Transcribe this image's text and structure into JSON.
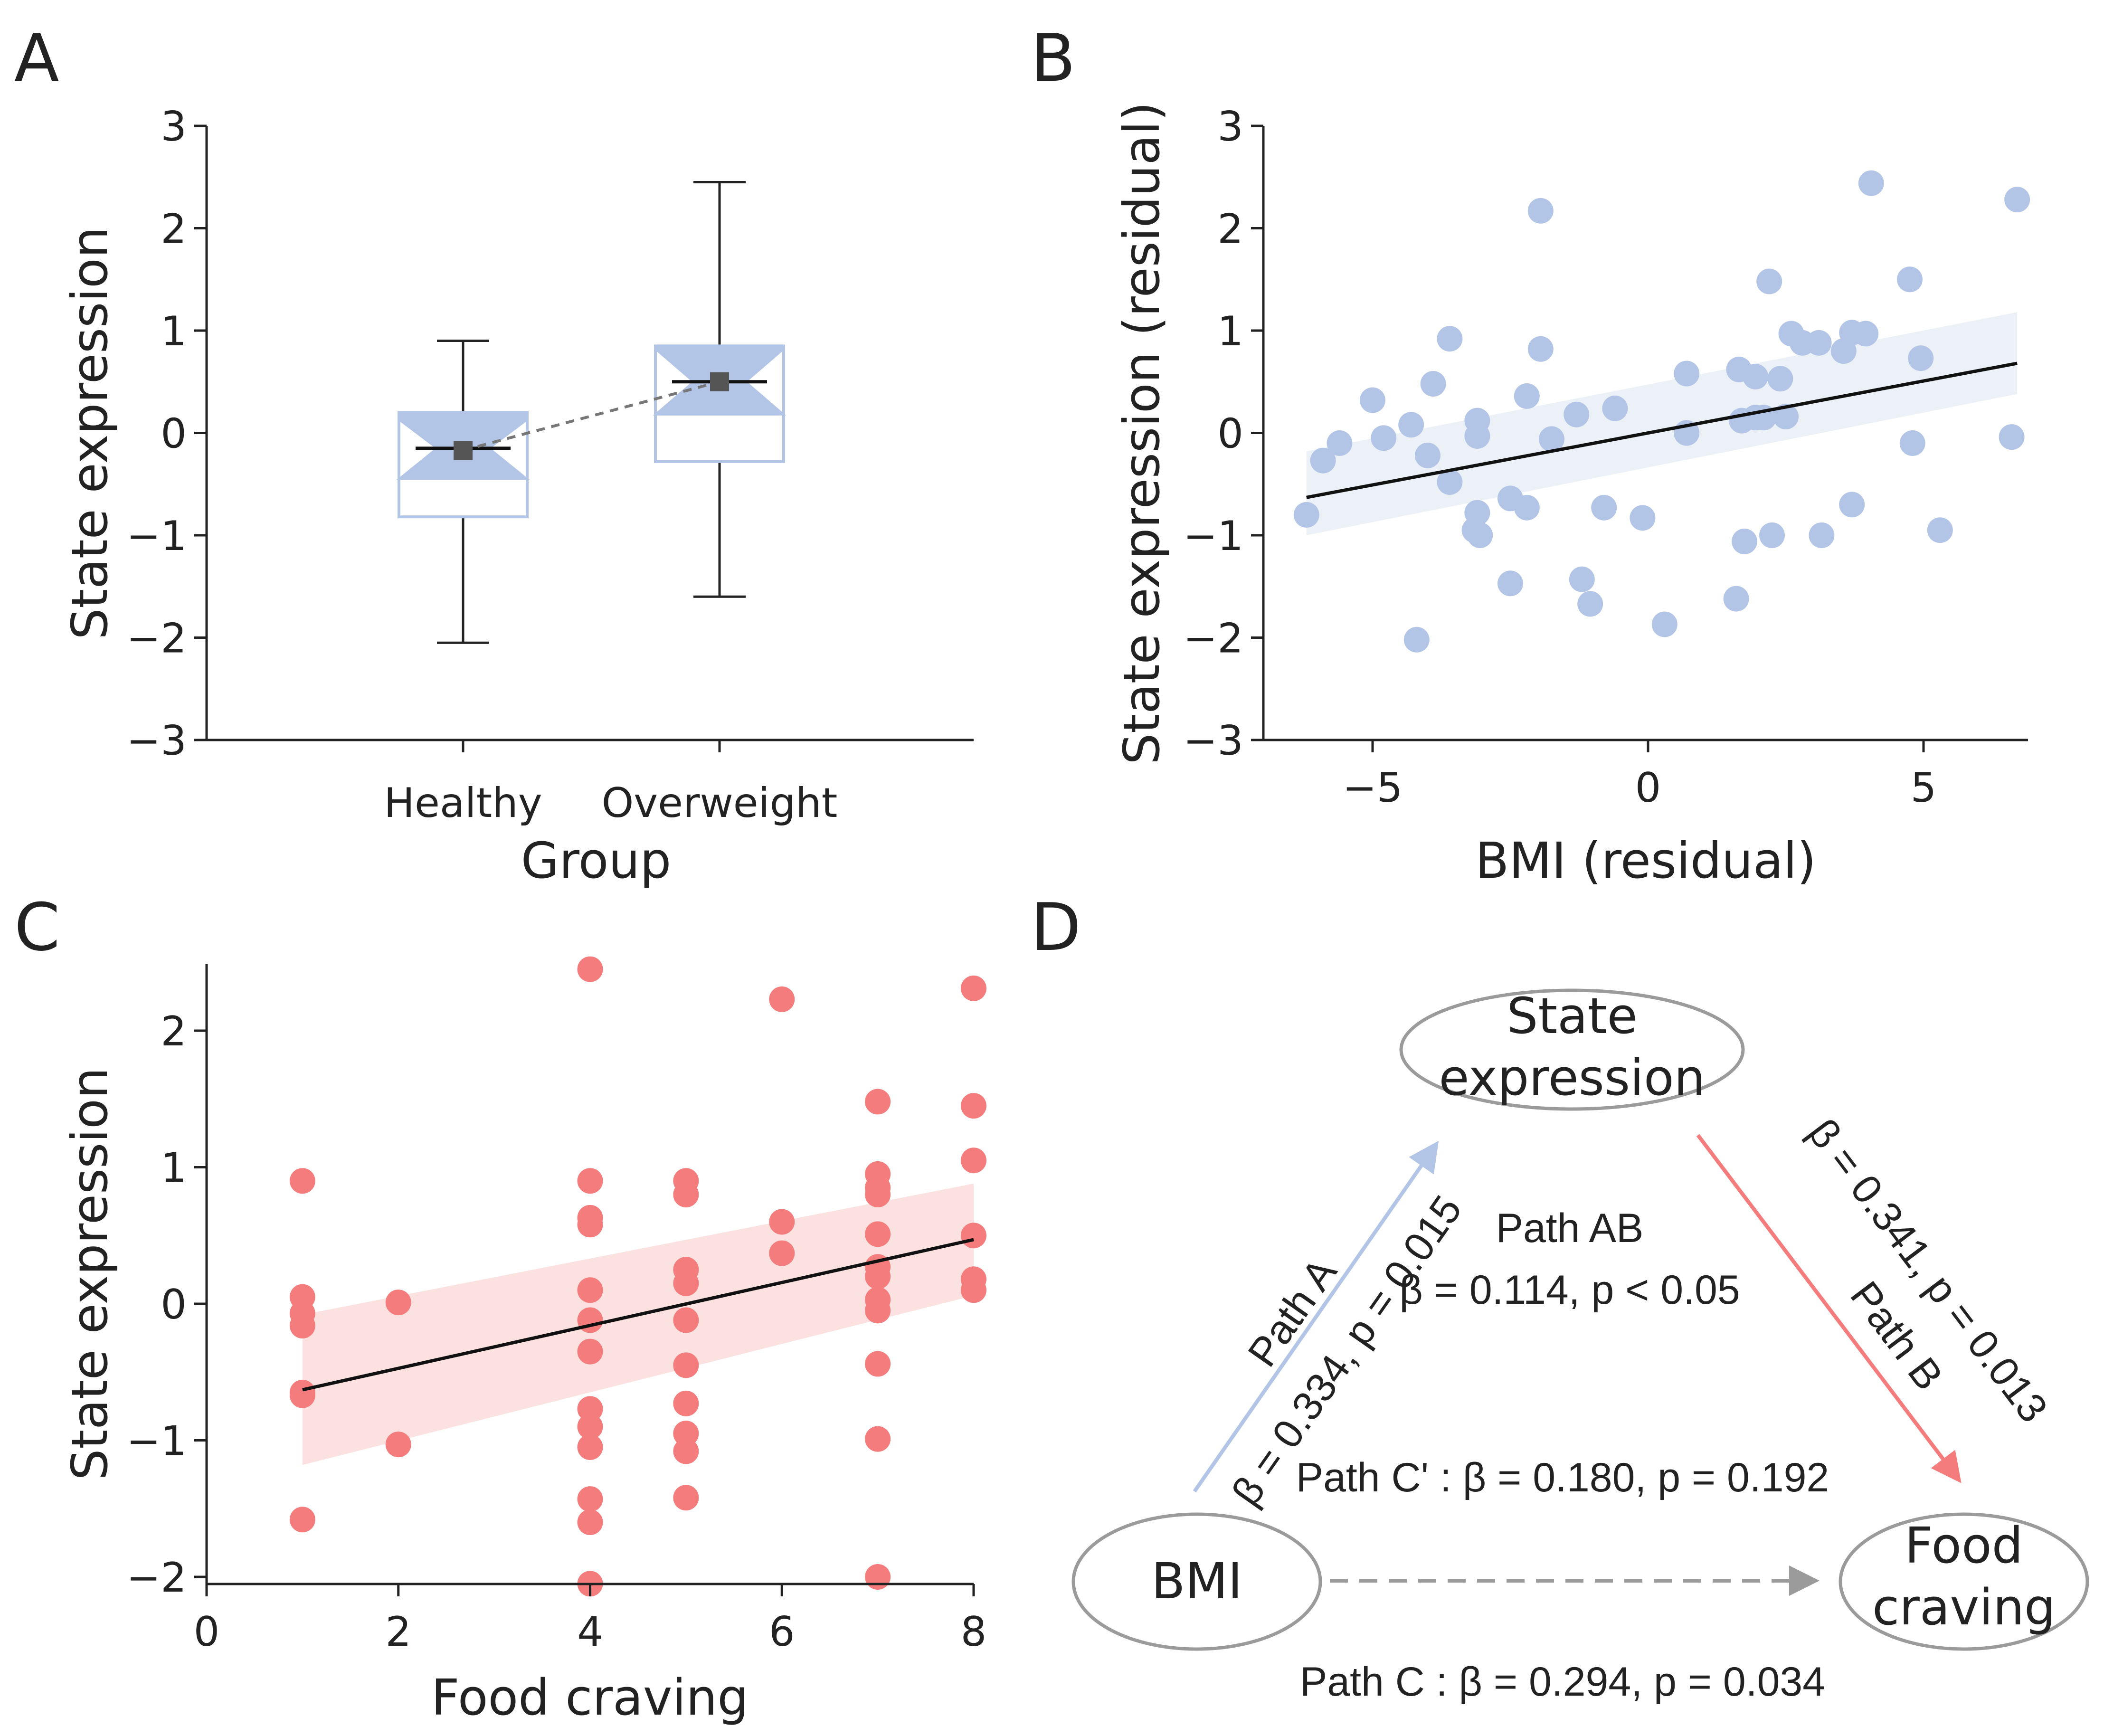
{
  "colors": {
    "blue": "#b3c5e6",
    "blue_light": "#e9eff7",
    "red": "#f47c7c",
    "red_light": "#fcdede",
    "ink": "#111111",
    "grey": "#9b9b9b"
  },
  "panels": {
    "a": "A",
    "b": "B",
    "c": "C",
    "d": "D"
  },
  "chart_data": [
    {
      "panel": "A",
      "type": "box",
      "xlabel": "Group",
      "ylabel": "State expression",
      "ylim": [
        -3,
        3
      ],
      "yticks": [
        "3",
        "2",
        "1",
        "0",
        "−1",
        "−2",
        "−3"
      ],
      "categories": [
        "Healthy",
        "Overweight"
      ],
      "boxes": [
        {
          "name": "Healthy",
          "whisker_low": -2.05,
          "q1": -0.82,
          "median": -0.15,
          "q3": 0.2,
          "whisker_high": 0.9,
          "notch_low": -0.45,
          "notch_high": 0.13,
          "mean": -0.17
        },
        {
          "name": "Overweight",
          "whisker_low": -1.6,
          "q1": -0.28,
          "median": 0.5,
          "q3": 0.85,
          "whisker_high": 2.45,
          "notch_low": 0.18,
          "notch_high": 0.82,
          "mean": 0.5
        }
      ]
    },
    {
      "panel": "B",
      "type": "scatter",
      "xlabel": "BMI (residual)",
      "ylabel": "State expression (residual)",
      "xlim": [
        -7,
        7
      ],
      "ylim": [
        -3,
        3
      ],
      "xticks": [
        "−5",
        "0",
        "5"
      ],
      "yticks": [
        "3",
        "2",
        "1",
        "0",
        "−1",
        "−2",
        "−3"
      ],
      "points": [
        [
          -6.2,
          -0.8
        ],
        [
          -5.9,
          -0.27
        ],
        [
          -5.6,
          -0.1
        ],
        [
          -5.0,
          0.32
        ],
        [
          -4.8,
          -0.05
        ],
        [
          -4.3,
          0.08
        ],
        [
          -4.0,
          -0.22
        ],
        [
          -3.9,
          0.48
        ],
        [
          -3.6,
          0.92
        ],
        [
          -3.6,
          -0.48
        ],
        [
          -3.1,
          0.12
        ],
        [
          -3.1,
          -0.03
        ],
        [
          -3.1,
          -0.78
        ],
        [
          -3.15,
          -0.95
        ],
        [
          -3.05,
          -1.0
        ],
        [
          -4.2,
          -2.02
        ],
        [
          -2.5,
          -0.64
        ],
        [
          -2.5,
          -1.47
        ],
        [
          -2.2,
          0.36
        ],
        [
          -2.2,
          -0.73
        ],
        [
          -1.95,
          2.17
        ],
        [
          -1.95,
          0.82
        ],
        [
          -1.75,
          -0.06
        ],
        [
          -1.2,
          -1.43
        ],
        [
          -1.3,
          0.18
        ],
        [
          -1.05,
          -1.67
        ],
        [
          -0.8,
          -0.73
        ],
        [
          -0.6,
          0.24
        ],
        [
          -0.1,
          -0.83
        ],
        [
          0.3,
          -1.87
        ],
        [
          0.7,
          0.58
        ],
        [
          0.7,
          0.0
        ],
        [
          1.6,
          -1.62
        ],
        [
          1.65,
          0.62
        ],
        [
          1.7,
          0.12
        ],
        [
          1.75,
          -1.06
        ],
        [
          1.95,
          0.55
        ],
        [
          1.95,
          0.15
        ],
        [
          2.1,
          0.15
        ],
        [
          2.2,
          1.48
        ],
        [
          2.25,
          -1.0
        ],
        [
          2.4,
          0.53
        ],
        [
          2.5,
          0.16
        ],
        [
          2.6,
          0.97
        ],
        [
          2.8,
          0.88
        ],
        [
          3.1,
          0.88
        ],
        [
          3.15,
          -1.0
        ],
        [
          3.55,
          0.8
        ],
        [
          3.7,
          -0.7
        ],
        [
          3.7,
          0.98
        ],
        [
          3.95,
          0.97
        ],
        [
          4.05,
          2.44
        ],
        [
          4.75,
          1.5
        ],
        [
          4.8,
          -0.1
        ],
        [
          4.95,
          0.73
        ],
        [
          5.3,
          -0.95
        ],
        [
          6.6,
          -0.04
        ],
        [
          6.7,
          2.28
        ]
      ],
      "fit": {
        "x": [
          -6.2,
          6.7
        ],
        "y": [
          -0.63,
          0.68
        ],
        "ci_low": [
          -1.0,
          0.38
        ],
        "ci_high": [
          -0.18,
          1.18
        ]
      }
    },
    {
      "panel": "C",
      "type": "scatter",
      "xlabel": "Food craving",
      "ylabel": "State expression",
      "xlim": [
        0,
        8
      ],
      "ylim": [
        -2.05,
        2.5
      ],
      "xticks": [
        "0",
        "2",
        "4",
        "6",
        "8"
      ],
      "yticks": [
        "2",
        "1",
        "0",
        "−1",
        "−2"
      ],
      "points": [
        [
          1,
          0.9
        ],
        [
          1,
          0.05
        ],
        [
          1,
          -0.07
        ],
        [
          1,
          -0.16
        ],
        [
          1,
          -0.65
        ],
        [
          1,
          -0.67
        ],
        [
          1,
          -1.58
        ],
        [
          2,
          0.01
        ],
        [
          2,
          -1.03
        ],
        [
          4,
          2.45
        ],
        [
          4,
          0.9
        ],
        [
          4,
          0.63
        ],
        [
          4,
          0.58
        ],
        [
          4,
          0.1
        ],
        [
          4,
          -0.12
        ],
        [
          4,
          -0.35
        ],
        [
          4,
          -0.77
        ],
        [
          4,
          -0.9
        ],
        [
          4,
          -1.05
        ],
        [
          4,
          -1.43
        ],
        [
          4,
          -1.6
        ],
        [
          4,
          -2.05
        ],
        [
          5,
          0.9
        ],
        [
          5,
          0.8
        ],
        [
          5,
          0.25
        ],
        [
          5,
          0.15
        ],
        [
          5,
          -0.12
        ],
        [
          5,
          -0.45
        ],
        [
          5,
          -0.73
        ],
        [
          5,
          -0.95
        ],
        [
          5,
          -1.08
        ],
        [
          5,
          -1.42
        ],
        [
          6,
          2.23
        ],
        [
          6,
          0.6
        ],
        [
          6,
          0.37
        ],
        [
          7,
          1.48
        ],
        [
          7,
          0.95
        ],
        [
          7,
          0.85
        ],
        [
          7,
          0.8
        ],
        [
          7,
          0.51
        ],
        [
          7,
          0.27
        ],
        [
          7,
          0.2
        ],
        [
          7,
          0.03
        ],
        [
          7,
          -0.05
        ],
        [
          7,
          -0.44
        ],
        [
          7,
          -0.99
        ],
        [
          7,
          -2.0
        ],
        [
          8,
          2.31
        ],
        [
          8,
          1.45
        ],
        [
          8,
          1.05
        ],
        [
          8,
          0.5
        ],
        [
          8,
          0.18
        ],
        [
          8,
          0.1
        ]
      ],
      "fit": {
        "x": [
          1,
          8
        ],
        "y": [
          -0.63,
          0.47
        ],
        "ci_low": [
          -1.18,
          0.06
        ],
        "ci_high": [
          -0.08,
          0.88
        ]
      }
    }
  ],
  "diagram": {
    "nodes": {
      "state_line1": "State",
      "state_line2": "expression",
      "bmi": "BMI",
      "food_line1": "Food",
      "food_line2": "craving"
    },
    "path_a": {
      "title": "Path A",
      "stats": "β = 0.334, p = 0.015"
    },
    "path_b": {
      "title": "Path B",
      "stats": "β = 0.341, p = 0.013"
    },
    "path_ab": {
      "title": "Path AB",
      "stats": "β = 0.114, p < 0.05"
    },
    "path_c_prime": "Path C' : β = 0.180, p = 0.192",
    "path_c": "Path C : β = 0.294, p = 0.034"
  }
}
